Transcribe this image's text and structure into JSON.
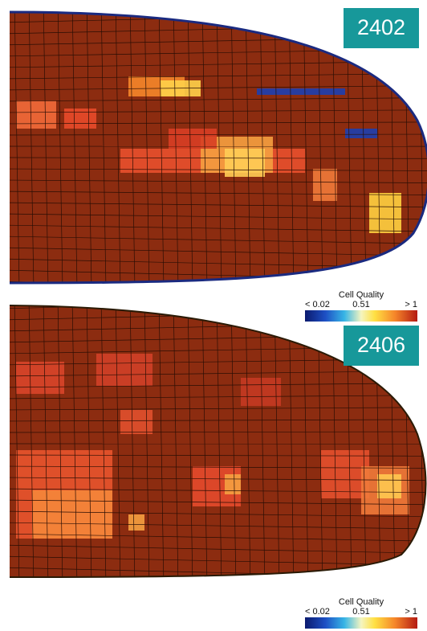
{
  "panels": [
    {
      "label": "2402",
      "legend": {
        "title": "Cell Quality",
        "ticks": [
          "< 0.02",
          "0.51",
          "> 1"
        ]
      }
    },
    {
      "label": "2406",
      "legend": {
        "title": "Cell Quality",
        "ticks": [
          "< 0.02",
          "0.51",
          "> 1"
        ]
      }
    }
  ]
}
